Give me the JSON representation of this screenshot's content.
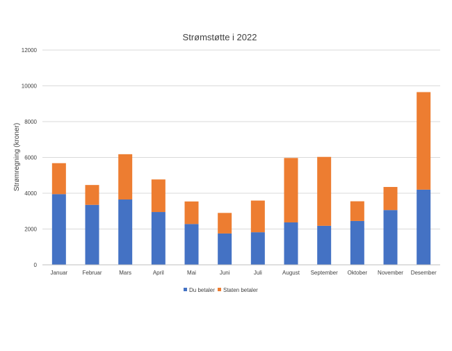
{
  "chart_data": {
    "type": "bar",
    "stacked": true,
    "title": "Strømstøtte i 2022",
    "xlabel": "",
    "ylabel": "Strømregning (kroner)",
    "ylim": [
      0,
      12000
    ],
    "yticks": [
      0,
      2000,
      4000,
      6000,
      8000,
      10000,
      12000
    ],
    "grid": true,
    "legend_position": "bottom",
    "categories": [
      "Januar",
      "Februar",
      "Mars",
      "April",
      "Mai",
      "Juni",
      "Juli",
      "August",
      "September",
      "Oktober",
      "November",
      "Desember"
    ],
    "series": [
      {
        "name": "Du betaler",
        "color": "#4472C4",
        "values": [
          3950,
          3350,
          3650,
          2950,
          2280,
          1750,
          1820,
          2370,
          2180,
          2450,
          3060,
          4200
        ]
      },
      {
        "name": "Staten betaler",
        "color": "#ED7D31",
        "values": [
          1730,
          1110,
          2530,
          1820,
          1260,
          1150,
          1770,
          3600,
          3850,
          1100,
          1290,
          5450
        ]
      }
    ]
  }
}
